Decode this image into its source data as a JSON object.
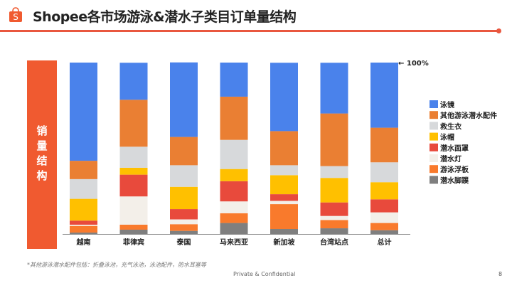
{
  "header": {
    "title": "Shopee各市场游泳&潜水子类目订单量结构",
    "logo_letter": "S",
    "accent": "#e9573f"
  },
  "side_label": "销量结构",
  "chart_data": {
    "type": "bar",
    "stacked": true,
    "normalized": true,
    "categories": [
      "越南",
      "菲律宾",
      "泰国",
      "马来西亚",
      "新加坡",
      "台湾站点",
      "总计"
    ],
    "ylim": [
      0,
      100
    ],
    "top_marker": "100%",
    "grid": false,
    "legend_position": "right",
    "series": [
      {
        "name": "潜水脚蹼",
        "color": "#7f7f7f",
        "values": [
          0.8,
          2.5,
          1.8,
          6.4,
          2.9,
          3.3,
          2.2
        ]
      },
      {
        "name": "游泳浮板",
        "color": "#f97a2c",
        "values": [
          3.9,
          2.9,
          3.9,
          5.7,
          14.5,
          4.8,
          4.2
        ]
      },
      {
        "name": "潜水灯",
        "color": "#f3efe9",
        "values": [
          0.7,
          16.5,
          2.8,
          6.9,
          1.9,
          2.4,
          6.2
        ]
      },
      {
        "name": "潜水面罩",
        "color": "#e84a3c",
        "values": [
          2.4,
          12.7,
          6.0,
          11.8,
          3.9,
          7.9,
          7.6
        ]
      },
      {
        "name": "泳帽",
        "color": "#ffc000",
        "values": [
          12.7,
          4.0,
          13.0,
          7.1,
          11.1,
          14.3,
          10.0
        ]
      },
      {
        "name": "救生衣",
        "color": "#d7d9db",
        "values": [
          11.5,
          12.3,
          12.6,
          17.0,
          5.8,
          6.9,
          11.6
        ]
      },
      {
        "name": "其他游泳潜水配件",
        "color": "#ea7f33",
        "values": [
          10.7,
          27.4,
          16.5,
          25.2,
          19.9,
          30.7,
          20.2
        ]
      },
      {
        "name": "泳镜",
        "color": "#4a82eb",
        "values": [
          57.3,
          21.6,
          43.5,
          19.9,
          39.9,
          29.6,
          38.0
        ]
      }
    ]
  },
  "footer": {
    "note": "*其他游泳潜水配件包括：折叠泳池，充气泳池，泳池配件，防水耳塞等",
    "confidential": "Private & Confidential",
    "page_number": "8"
  }
}
